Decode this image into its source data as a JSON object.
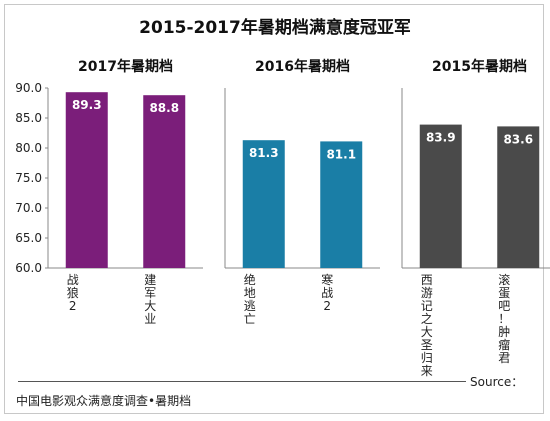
{
  "chart_data": {
    "type": "bar",
    "title": "2015-2017年暑期档满意度冠亚军",
    "groups": [
      {
        "name": "2017年暑期档",
        "color": "#7b1e7a",
        "categories": [
          "战狼2",
          "建军大业"
        ],
        "values": [
          89.3,
          88.8
        ]
      },
      {
        "name": "2016年暑期档",
        "color": "#1a7ea6",
        "categories": [
          "绝地逃亡",
          "寒战2"
        ],
        "values": [
          81.3,
          81.1
        ]
      },
      {
        "name": "2015年暑期档",
        "color": "#4a4a4a",
        "categories": [
          "西游记之大圣归来",
          "滚蛋吧！肿瘤君"
        ],
        "values": [
          83.9,
          83.6
        ]
      }
    ],
    "ylim": [
      60,
      90
    ],
    "yticks": [
      "60.0",
      "65.0",
      "70.0",
      "75.0",
      "80.0",
      "85.0",
      "90.0"
    ],
    "grid": false
  },
  "footer": {
    "source_label": "Source：",
    "note": "中国电影观众满意度调查•暑期档"
  }
}
